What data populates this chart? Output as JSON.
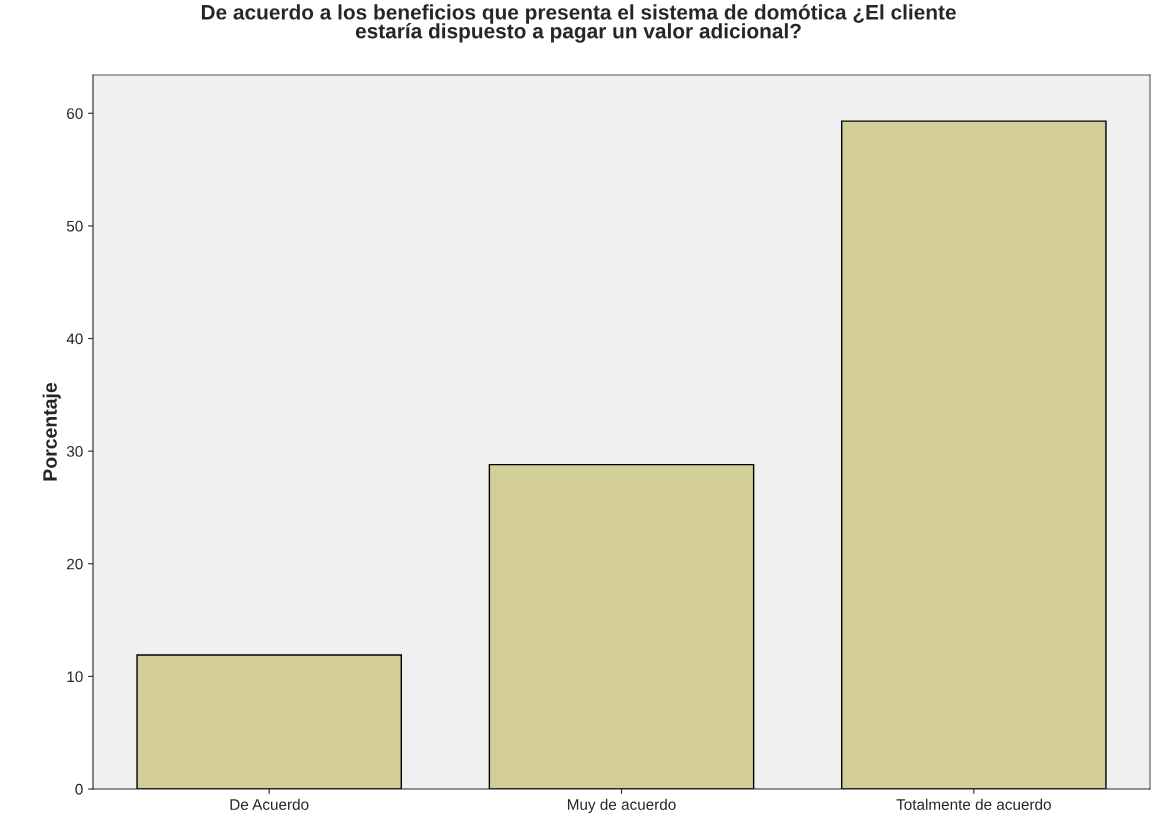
{
  "chart_data": {
    "type": "bar",
    "title": "De acuerdo a los beneficios que presenta el sistema de domótica ¿El cliente\nestaría dispuesto a pagar un valor adicional?",
    "ylabel": "Porcentaje",
    "categories": [
      "De Acuerdo",
      "Muy de acuerdo",
      "Totalmente de acuerdo"
    ],
    "values": [
      11.9,
      28.8,
      59.3
    ],
    "color": "#d3ce97",
    "ylim": [
      0,
      63.4
    ],
    "yticks": [
      0,
      10,
      20,
      30,
      40,
      50,
      60
    ],
    "grid": false
  }
}
